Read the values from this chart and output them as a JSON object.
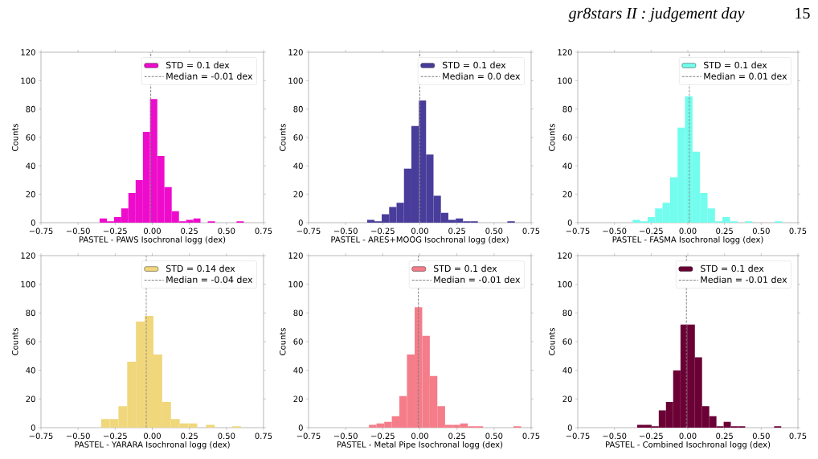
{
  "chart_data": [
    {
      "type": "histogram",
      "xlabel": "PASTEL - PAWS Isochronal logg (dex)",
      "ylabel": "Counts",
      "annotations": [
        "gr8stars II : judgement day",
        "15"
      ],
      "bins": [
        -0.355,
        -0.306,
        -0.258,
        -0.209,
        -0.161,
        -0.112,
        -0.063,
        -0.015,
        0.034,
        0.082,
        0.131,
        0.18,
        0.228,
        0.277,
        0.325,
        0.374,
        0.423,
        0.471,
        0.52,
        0.568,
        0.617
      ],
      "series": [
        {
          "name": "STD = 0.1 dex",
          "color": "#ee0ccc",
          "values": [
            3,
            1,
            4,
            10,
            21,
            30,
            64,
            87,
            47,
            25,
            8,
            1,
            2,
            3,
            0,
            1,
            0,
            0,
            0,
            1
          ]
        }
      ],
      "ref_lines": [
        {
          "axis": "x",
          "value": -0.01,
          "label": "Median = -0.01 dex",
          "color": "#808080",
          "line_style": "dashed"
        }
      ],
      "xlim": [
        -0.75,
        0.75
      ],
      "ylim": [
        0,
        120
      ],
      "xticks": [
        {
          "value": -0.75,
          "label": "−0.75"
        },
        {
          "value": -0.5,
          "label": "−0.50"
        },
        {
          "value": -0.25,
          "label": "−0.25"
        },
        {
          "value": 0,
          "label": "0.00"
        },
        {
          "value": 0.25,
          "label": "0.25"
        },
        {
          "value": 0.5,
          "label": "0.50"
        },
        {
          "value": 0.75,
          "label": "0.75"
        }
      ],
      "yticks": [
        0,
        20,
        40,
        60,
        80,
        100,
        120
      ],
      "legend": "top right"
    },
    {
      "type": "histogram",
      "xlabel": "PASTEL - ARES+MOOG Isochronal logg (dex)",
      "ylabel": "Counts",
      "bins": [
        -0.356,
        -0.306,
        -0.257,
        -0.207,
        -0.157,
        -0.107,
        -0.057,
        -0.007,
        0.042,
        0.092,
        0.142,
        0.192,
        0.242,
        0.291,
        0.341,
        0.391,
        0.441,
        0.491,
        0.54,
        0.59,
        0.64
      ],
      "series": [
        {
          "name": "STD = 0.1 dex",
          "color": "#483d9b",
          "values": [
            2,
            1,
            6,
            11,
            14,
            38,
            68,
            86,
            48,
            19,
            7,
            2,
            3,
            1,
            1,
            0,
            0,
            0,
            0,
            1
          ]
        }
      ],
      "ref_lines": [
        {
          "axis": "x",
          "value": 0.0,
          "label": "Median = 0.0 dex",
          "color": "#808080",
          "line_style": "dashed"
        }
      ],
      "xlim": [
        -0.75,
        0.75
      ],
      "ylim": [
        0,
        120
      ],
      "xticks": [
        {
          "value": -0.75,
          "label": "−0.75"
        },
        {
          "value": -0.5,
          "label": "−0.50"
        },
        {
          "value": -0.25,
          "label": "−0.25"
        },
        {
          "value": 0,
          "label": "0.00"
        },
        {
          "value": 0.25,
          "label": "0.25"
        },
        {
          "value": 0.5,
          "label": "0.50"
        },
        {
          "value": 0.75,
          "label": "0.75"
        }
      ],
      "yticks": [
        0,
        20,
        40,
        60,
        80,
        100,
        120
      ],
      "legend": "top right"
    },
    {
      "type": "histogram",
      "xlabel": "PASTEL - FASMA Isochronal logg (dex)",
      "ylabel": "Counts",
      "bins": [
        -0.376,
        -0.325,
        -0.274,
        -0.223,
        -0.172,
        -0.121,
        -0.07,
        -0.019,
        0.032,
        0.083,
        0.134,
        0.185,
        0.236,
        0.287,
        0.338,
        0.389,
        0.44,
        0.491,
        0.542,
        0.593,
        0.644
      ],
      "series": [
        {
          "name": "STD = 0.1 dex",
          "color": "#72fdee",
          "values": [
            2,
            1,
            4,
            10,
            14,
            32,
            67,
            89,
            50,
            21,
            10,
            1,
            4,
            1,
            0,
            1,
            0,
            0,
            0,
            1
          ]
        }
      ],
      "ref_lines": [
        {
          "axis": "x",
          "value": 0.01,
          "label": "Median = 0.01 dex",
          "color": "#808080",
          "line_style": "dashed"
        }
      ],
      "xlim": [
        -0.75,
        0.75
      ],
      "ylim": [
        0,
        120
      ],
      "xticks": [
        {
          "value": -0.75,
          "label": "−0.75"
        },
        {
          "value": -0.5,
          "label": "−0.50"
        },
        {
          "value": -0.25,
          "label": "−0.25"
        },
        {
          "value": 0,
          "label": "0.00"
        },
        {
          "value": 0.25,
          "label": "0.25"
        },
        {
          "value": 0.5,
          "label": "0.50"
        },
        {
          "value": 0.75,
          "label": "0.75"
        }
      ],
      "yticks": [
        0,
        20,
        40,
        60,
        80,
        100,
        120
      ],
      "legend": "top right"
    },
    {
      "type": "histogram",
      "xlabel": "PASTEL - YARARA Isochronal logg (dex)",
      "ylabel": "Counts",
      "bins": [
        -0.346,
        -0.287,
        -0.228,
        -0.169,
        -0.11,
        -0.051,
        0.008,
        0.067,
        0.126,
        0.185,
        0.244,
        0.303,
        0.362,
        0.421,
        0.48,
        0.539,
        0.598
      ],
      "series": [
        {
          "name": "STD = 0.14 dex",
          "color": "#f0d77c",
          "values": [
            6,
            6,
            15,
            46,
            74,
            78,
            51,
            18,
            6,
            3,
            3,
            0,
            2,
            0,
            0,
            1
          ]
        }
      ],
      "ref_lines": [
        {
          "axis": "x",
          "value": -0.04,
          "label": "Median = -0.04 dex",
          "color": "#808080",
          "line_style": "dashed"
        }
      ],
      "xlim": [
        -0.75,
        0.75
      ],
      "ylim": [
        0,
        120
      ],
      "xticks": [
        {
          "value": -0.75,
          "label": "−0.75"
        },
        {
          "value": -0.5,
          "label": "−0.50"
        },
        {
          "value": -0.25,
          "label": "−0.25"
        },
        {
          "value": 0,
          "label": "0.00"
        },
        {
          "value": 0.25,
          "label": "0.25"
        },
        {
          "value": 0.5,
          "label": "0.50"
        },
        {
          "value": 0.75,
          "label": "0.75"
        }
      ],
      "yticks": [
        0,
        20,
        40,
        60,
        80,
        100,
        120
      ],
      "legend": "top right"
    },
    {
      "type": "histogram",
      "xlabel": "PASTEL - Metal Pipe Isochronal logg (dex)",
      "ylabel": "Counts",
      "bins": [
        -0.343,
        -0.292,
        -0.24,
        -0.189,
        -0.138,
        -0.087,
        -0.035,
        0.016,
        0.067,
        0.118,
        0.17,
        0.221,
        0.272,
        0.323,
        0.374,
        0.426,
        0.477,
        0.528,
        0.579,
        0.631,
        0.682
      ],
      "series": [
        {
          "name": "STD = 0.1 dex",
          "color": "#f47d89",
          "values": [
            2,
            3,
            4,
            8,
            22,
            51,
            84,
            64,
            36,
            15,
            2,
            2,
            3,
            1,
            1,
            0,
            0,
            0,
            0,
            1
          ]
        }
      ],
      "ref_lines": [
        {
          "axis": "x",
          "value": -0.01,
          "label": "Median = -0.01 dex",
          "color": "#808080",
          "line_style": "dashed"
        }
      ],
      "xlim": [
        -0.75,
        0.75
      ],
      "ylim": [
        0,
        120
      ],
      "xticks": [
        {
          "value": -0.75,
          "label": "−0.75"
        },
        {
          "value": -0.5,
          "label": "−0.50"
        },
        {
          "value": -0.25,
          "label": "−0.25"
        },
        {
          "value": 0,
          "label": "0.00"
        },
        {
          "value": 0.25,
          "label": "0.25"
        },
        {
          "value": 0.5,
          "label": "0.50"
        },
        {
          "value": 0.75,
          "label": "0.75"
        }
      ],
      "yticks": [
        0,
        20,
        40,
        60,
        80,
        100,
        120
      ],
      "legend": "top right"
    },
    {
      "type": "histogram",
      "xlabel": "PASTEL - Combined Isochronal logg (dex)",
      "ylabel": "Counts",
      "bins": [
        -0.345,
        -0.296,
        -0.247,
        -0.198,
        -0.149,
        -0.1,
        -0.05,
        -0.001,
        0.048,
        0.097,
        0.146,
        0.195,
        0.244,
        0.293,
        0.342,
        0.391,
        0.441,
        0.49,
        0.539,
        0.588,
        0.637
      ],
      "series": [
        {
          "name": "STD = 0.1 dex",
          "color": "#6b0035",
          "values": [
            2,
            2,
            1,
            12,
            18,
            40,
            72,
            72,
            49,
            15,
            8,
            1,
            4,
            1,
            1,
            0,
            0,
            0,
            0,
            1
          ]
        }
      ],
      "ref_lines": [
        {
          "axis": "x",
          "value": -0.01,
          "label": "Median = -0.01 dex",
          "color": "#808080",
          "line_style": "dashed"
        }
      ],
      "xlim": [
        -0.75,
        0.75
      ],
      "ylim": [
        0,
        120
      ],
      "xticks": [
        {
          "value": -0.75,
          "label": "−0.75"
        },
        {
          "value": -0.5,
          "label": "−0.50"
        },
        {
          "value": -0.25,
          "label": "−0.25"
        },
        {
          "value": 0,
          "label": "0.00"
        },
        {
          "value": 0.25,
          "label": "0.25"
        },
        {
          "value": 0.5,
          "label": "0.50"
        },
        {
          "value": 0.75,
          "label": "0.75"
        }
      ],
      "yticks": [
        0,
        20,
        40,
        60,
        80,
        100,
        120
      ],
      "legend": "top right"
    }
  ]
}
